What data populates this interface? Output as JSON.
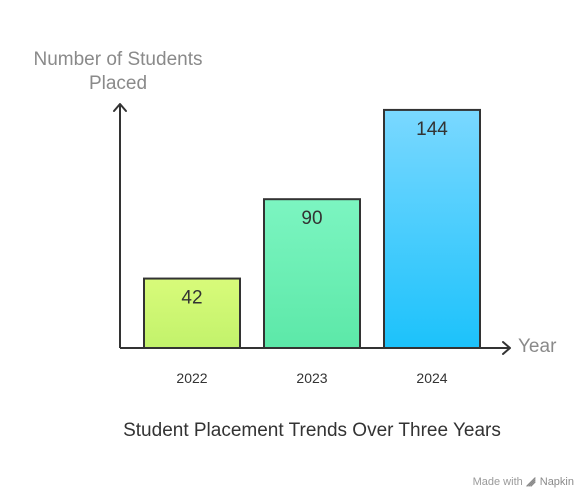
{
  "chart_data": {
    "type": "bar",
    "title": "Student Placement Trends Over Three Years",
    "xlabel": "Year",
    "ylabel_lines": [
      "Number of Students",
      "Placed"
    ],
    "categories": [
      "2022",
      "2023",
      "2024"
    ],
    "values": [
      42,
      90,
      144
    ],
    "data_labels": [
      "42",
      "90",
      "144"
    ],
    "ylim": [
      0,
      150
    ],
    "grid": false,
    "legend": "none",
    "bar_colors": [
      {
        "top": "#d8fb7a",
        "bottom": "#c2f26b",
        "stroke": "#333333"
      },
      {
        "top": "#7cf5c1",
        "bottom": "#5ce8a8",
        "stroke": "#333333"
      },
      {
        "top": "#7ad8ff",
        "bottom": "#1cc2fb",
        "stroke": "#333333"
      }
    ],
    "axis_color": "#333333"
  },
  "watermark": {
    "made_with": "Made with",
    "brand": "Napkin",
    "icon": "napkin-logo-icon"
  }
}
